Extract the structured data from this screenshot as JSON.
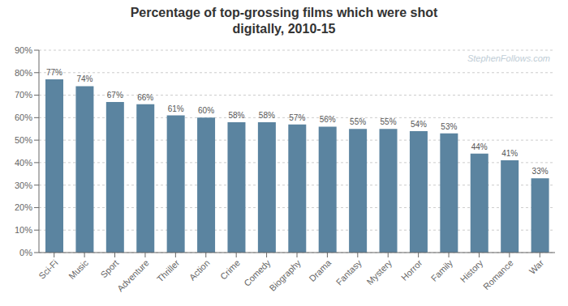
{
  "chart_data": {
    "type": "bar",
    "title": "Percentage of top-grossing films which were shot\ndigitally, 2010-15",
    "categories": [
      "Sci-Fi",
      "Music",
      "Sport",
      "Adventure",
      "Thriller",
      "Action",
      "Crime",
      "Comedy",
      "Biography",
      "Drama",
      "Fantasy",
      "Mystery",
      "Horror",
      "Family",
      "History",
      "Romance",
      "War"
    ],
    "values": [
      77,
      74,
      67,
      66,
      61,
      60,
      58,
      58,
      57,
      56,
      55,
      55,
      54,
      53,
      44,
      41,
      33
    ],
    "value_labels": [
      "77%",
      "74%",
      "67%",
      "66%",
      "61%",
      "60%",
      "58%",
      "58%",
      "57%",
      "56%",
      "55%",
      "55%",
      "54%",
      "53%",
      "44%",
      "41%",
      "33%"
    ],
    "data_labels": true,
    "color": "#5b84a0",
    "ylim": [
      0,
      90
    ],
    "yticks": [
      {
        "value": 0,
        "label": "0%"
      },
      {
        "value": 10,
        "label": "10%"
      },
      {
        "value": 20,
        "label": "20%"
      },
      {
        "value": 30,
        "label": "30%"
      },
      {
        "value": 40,
        "label": "40%"
      },
      {
        "value": 50,
        "label": "50%"
      },
      {
        "value": 60,
        "label": "60%"
      },
      {
        "value": 70,
        "label": "70%"
      },
      {
        "value": 80,
        "label": "80%"
      },
      {
        "value": 90,
        "label": "90%"
      }
    ],
    "grid": true,
    "annotations": [
      {
        "text": "StephenFollows.com",
        "color": "#c0cdd6"
      }
    ]
  }
}
